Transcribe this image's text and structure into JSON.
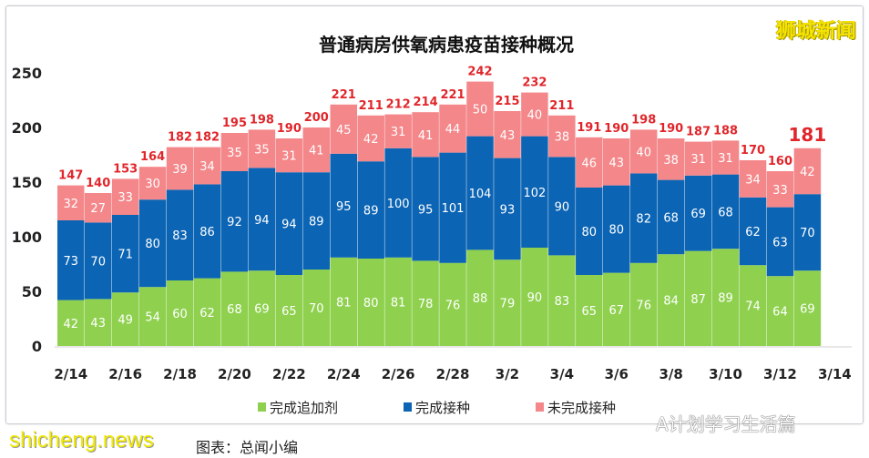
{
  "chart_data": {
    "type": "bar",
    "stacked": true,
    "title": "普通病房供氧病患疫苗接种概况",
    "categories": [
      "2/14",
      "2/15",
      "2/16",
      "2/17",
      "2/18",
      "2/19",
      "2/20",
      "2/21",
      "2/22",
      "2/23",
      "2/24",
      "2/25",
      "2/26",
      "2/27",
      "2/28",
      "3/1",
      "3/2",
      "3/3",
      "3/4",
      "3/5",
      "3/6",
      "3/7",
      "3/8",
      "3/9",
      "3/10",
      "3/11",
      "3/12",
      "3/13"
    ],
    "xtick_labels": [
      "2/14",
      "2/16",
      "2/18",
      "2/20",
      "2/22",
      "2/24",
      "2/26",
      "2/28",
      "3/2",
      "3/4",
      "3/6",
      "3/8",
      "3/10",
      "3/12",
      "3/14"
    ],
    "yticks": [
      0,
      50,
      100,
      150,
      200,
      250
    ],
    "ylim": [
      0,
      250
    ],
    "grid": false,
    "legend": "bottom",
    "series": [
      {
        "name": "完成追加剂",
        "color": "#8fd14f",
        "values": [
          42,
          43,
          49,
          54,
          60,
          62,
          68,
          69,
          65,
          70,
          81,
          80,
          81,
          78,
          76,
          88,
          79,
          90,
          83,
          65,
          67,
          76,
          84,
          87,
          89,
          74,
          64,
          69
        ]
      },
      {
        "name": "完成接种",
        "color": "#0b64b4",
        "values": [
          73,
          70,
          71,
          80,
          83,
          86,
          92,
          94,
          94,
          89,
          95,
          89,
          100,
          95,
          101,
          104,
          93,
          102,
          90,
          80,
          80,
          82,
          68,
          69,
          68,
          62,
          63,
          70
        ]
      },
      {
        "name": "未完成接种",
        "color": "#f4878a",
        "values": [
          32,
          27,
          33,
          30,
          39,
          34,
          35,
          35,
          31,
          41,
          45,
          42,
          31,
          41,
          44,
          50,
          43,
          40,
          38,
          46,
          43,
          40,
          38,
          31,
          31,
          34,
          33,
          42
        ]
      }
    ],
    "totals": [
      147,
      140,
      153,
      164,
      182,
      182,
      195,
      198,
      190,
      200,
      221,
      211,
      212,
      214,
      221,
      242,
      215,
      232,
      211,
      191,
      190,
      198,
      190,
      187,
      188,
      170,
      160,
      181
    ],
    "total_label_color": "#e0262b"
  },
  "logo": "狮城新闻",
  "watermark": "shicheng.news",
  "source": "图表：总闻小编",
  "wechat_tag": "A计划学习生活篇"
}
